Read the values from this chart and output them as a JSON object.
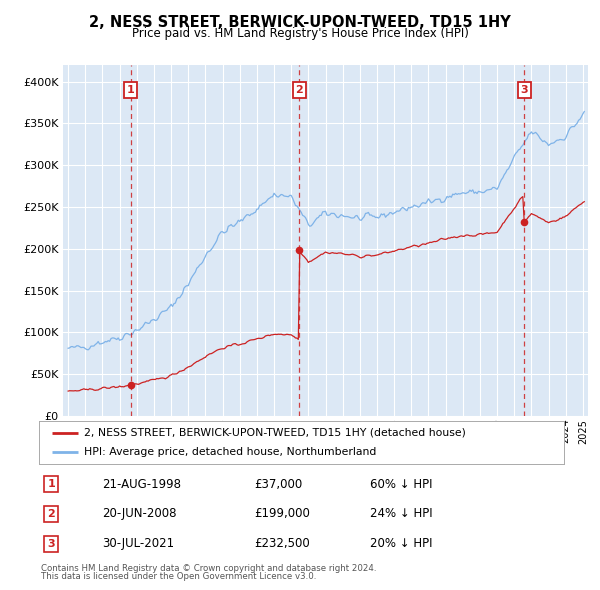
{
  "title": "2, NESS STREET, BERWICK-UPON-TWEED, TD15 1HY",
  "subtitle": "Price paid vs. HM Land Registry's House Price Index (HPI)",
  "ylim": [
    0,
    420000
  ],
  "yticks": [
    0,
    50000,
    100000,
    150000,
    200000,
    250000,
    300000,
    350000,
    400000
  ],
  "ytick_labels": [
    "£0",
    "£50K",
    "£100K",
    "£150K",
    "£200K",
    "£250K",
    "£300K",
    "£350K",
    "£400K"
  ],
  "fig_bg_color": "#ffffff",
  "plot_bg_color": "#dce8f5",
  "grid_color": "#ffffff",
  "sales": [
    {
      "date_year": 1998.64,
      "price": 37000,
      "label": "1"
    },
    {
      "date_year": 2008.47,
      "price": 199000,
      "label": "2"
    },
    {
      "date_year": 2021.58,
      "price": 232500,
      "label": "3"
    }
  ],
  "sale_table": [
    {
      "num": "1",
      "date": "21-AUG-1998",
      "price": "£37,000",
      "hpi": "60% ↓ HPI"
    },
    {
      "num": "2",
      "date": "20-JUN-2008",
      "price": "£199,000",
      "hpi": "24% ↓ HPI"
    },
    {
      "num": "3",
      "date": "30-JUL-2021",
      "price": "£232,500",
      "hpi": "20% ↓ HPI"
    }
  ],
  "legend_line1": "2, NESS STREET, BERWICK-UPON-TWEED, TD15 1HY (detached house)",
  "legend_line2": "HPI: Average price, detached house, Northumberland",
  "footer1": "Contains HM Land Registry data © Crown copyright and database right 2024.",
  "footer2": "This data is licensed under the Open Government Licence v3.0.",
  "red_color": "#cc2222",
  "blue_color": "#7fb3e8",
  "hpi_anchors_years": [
    1995,
    1996,
    1997,
    1998,
    1999,
    2000,
    2001,
    2002,
    2003,
    2004,
    2005,
    2006,
    2007,
    2008,
    2009,
    2010,
    2011,
    2012,
    2013,
    2014,
    2015,
    2016,
    2017,
    2018,
    2019,
    2020,
    2021,
    2022,
    2023,
    2024,
    2025
  ],
  "hpi_anchors_vals": [
    80000,
    83000,
    89000,
    94000,
    103000,
    115000,
    130000,
    158000,
    192000,
    220000,
    232000,
    248000,
    265000,
    262000,
    228000,
    242000,
    240000,
    236000,
    238000,
    244000,
    250000,
    255000,
    262000,
    267000,
    268000,
    272000,
    308000,
    340000,
    325000,
    335000,
    360000
  ]
}
